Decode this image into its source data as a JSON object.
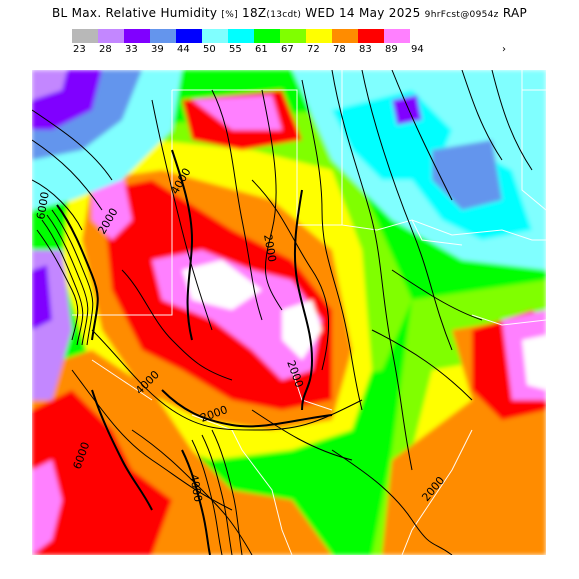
{
  "title": {
    "main": "BL Max. Relative Humidity",
    "units": "[%]",
    "time": "18Z",
    "local_time": "(13cdt)",
    "date": "WED 14 May 2025",
    "forecast": "9hrFcst@0954z",
    "model": "RAP"
  },
  "colorbar": {
    "labels": [
      "23",
      "28",
      "33",
      "39",
      "44",
      "50",
      "55",
      "61",
      "67",
      "72",
      "78",
      "83",
      "89",
      "94"
    ],
    "colors": [
      "#b8b8b8",
      "#c387ff",
      "#8000ff",
      "#6495ed",
      "#0000ff",
      "#80ffff",
      "#00ffff",
      "#00ff00",
      "#80ff00",
      "#ffff00",
      "#ff8c00",
      "#ff0000",
      "#ff80ff",
      "#ffffff"
    ],
    "more_symbol": "›"
  },
  "map": {
    "contour_labels": [
      "4000",
      "2000",
      "2000",
      "6000",
      "2000",
      "4000",
      "2000",
      "4000",
      "6000",
      "2000"
    ]
  }
}
